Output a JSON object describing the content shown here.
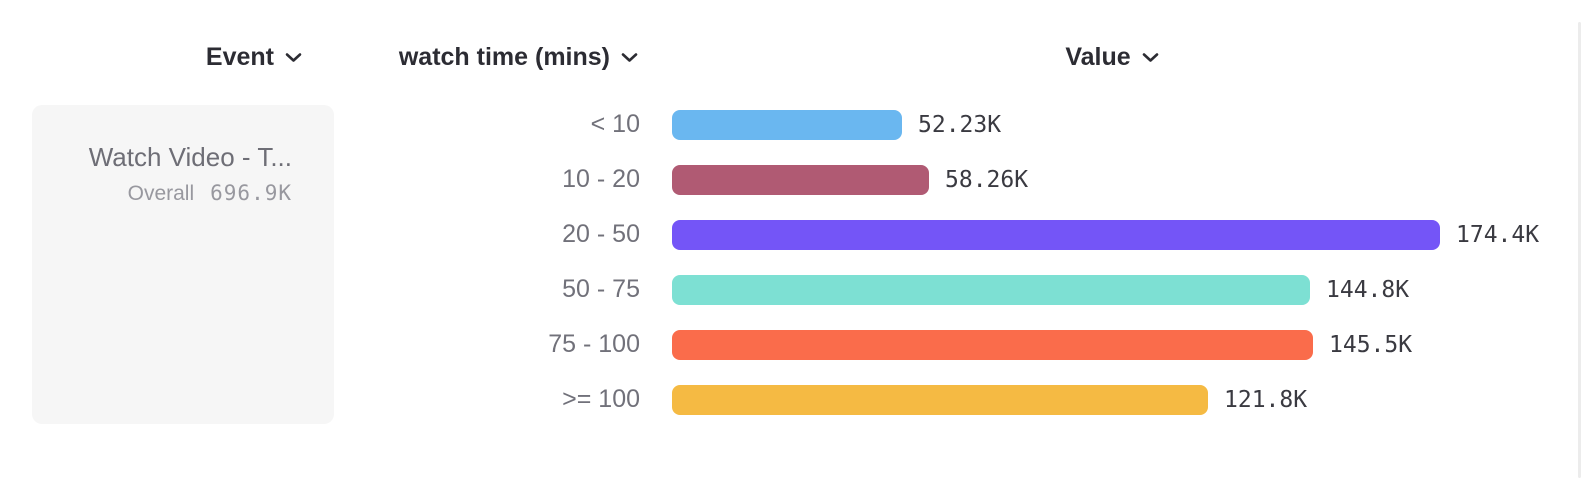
{
  "header": {
    "event_label": "Event",
    "breakdown_label": "watch time (mins)",
    "value_label": "Value"
  },
  "event_card": {
    "title": "Watch Video - T...",
    "overall_label": "Overall",
    "overall_value": "696.9K"
  },
  "chart_data": {
    "type": "bar",
    "orientation": "horizontal",
    "title": "",
    "xlabel": "Value",
    "ylabel": "watch time (mins)",
    "categories": [
      "< 10",
      "10 - 20",
      "20 - 50",
      "50 - 75",
      "75 - 100",
      ">= 100"
    ],
    "values": [
      52230,
      58260,
      174400,
      144800,
      145500,
      121800
    ],
    "value_labels": [
      "52.23K",
      "58.26K",
      "174.4K",
      "144.8K",
      "145.5K",
      "121.8K"
    ],
    "bar_colors": [
      "#6ab7f0",
      "#b05a73",
      "#7455f7",
      "#7de0d3",
      "#fa6c4b",
      "#f5ba43"
    ],
    "xlim": [
      0,
      174400
    ],
    "grid": false,
    "legend": false
  },
  "colors": {
    "header_text": "#2c2c33",
    "row_label": "#71717a",
    "value_text": "#3a3a41",
    "card_bg": "#f6f6f6",
    "card_title": "#6e6e76",
    "card_overall": "#98989f"
  }
}
